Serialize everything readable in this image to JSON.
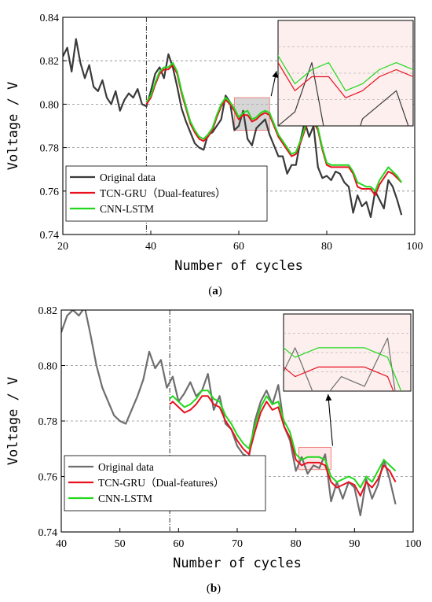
{
  "chart_data": [
    {
      "type": "line",
      "caption_prefix": "(",
      "caption_letter": "a",
      "caption_suffix": ")",
      "xlabel": "Number of cycles",
      "ylabel": "Voltage / V",
      "xlim": [
        20,
        100
      ],
      "ylim": [
        0.74,
        0.84
      ],
      "xticks": [
        20,
        40,
        60,
        80,
        100
      ],
      "xtick_labels": [
        "20",
        "40",
        "60",
        "80",
        "100"
      ],
      "yticks": [
        0.74,
        0.76,
        0.78,
        0.8,
        0.82,
        0.84
      ],
      "ytick_labels": [
        "0.74",
        "0.76",
        "0.78",
        "0.80",
        "0.82",
        "0.84"
      ],
      "grid": "horizontal dashed",
      "prediction_start": 39,
      "legend_position": "bottom-left",
      "zoom_region": {
        "x": [
          59,
          67
        ],
        "y": [
          0.788,
          0.803
        ]
      },
      "series": [
        {
          "name": "Original data",
          "color": "#3a3a3a",
          "x": [
            20,
            21,
            22,
            23,
            24,
            25,
            26,
            27,
            28,
            29,
            30,
            31,
            32,
            33,
            34,
            35,
            36,
            37,
            38,
            39,
            40,
            41,
            42,
            43,
            44,
            45,
            46,
            47,
            48,
            49,
            50,
            51,
            52,
            53,
            54,
            55,
            56,
            57,
            58,
            59,
            60,
            61,
            62,
            63,
            64,
            65,
            66,
            67,
            68,
            69,
            70,
            71,
            72,
            73,
            74,
            75,
            76,
            77,
            78,
            79,
            80,
            81,
            82,
            83,
            84,
            85,
            86,
            87,
            88,
            89,
            90,
            91,
            92,
            93,
            94,
            95,
            96,
            97
          ],
          "y": [
            0.822,
            0.826,
            0.815,
            0.83,
            0.819,
            0.812,
            0.818,
            0.808,
            0.806,
            0.811,
            0.803,
            0.8,
            0.806,
            0.797,
            0.802,
            0.805,
            0.803,
            0.807,
            0.8,
            0.799,
            0.806,
            0.814,
            0.817,
            0.812,
            0.823,
            0.817,
            0.808,
            0.798,
            0.792,
            0.787,
            0.782,
            0.78,
            0.779,
            0.786,
            0.787,
            0.79,
            0.793,
            0.804,
            0.801,
            0.788,
            0.79,
            0.797,
            0.784,
            0.781,
            0.789,
            0.791,
            0.793,
            0.786,
            0.781,
            0.776,
            0.776,
            0.768,
            0.772,
            0.772,
            0.783,
            0.792,
            0.785,
            0.79,
            0.771,
            0.766,
            0.767,
            0.765,
            0.769,
            0.768,
            0.764,
            0.762,
            0.75,
            0.758,
            0.753,
            0.755,
            0.748,
            0.76,
            0.756,
            0.752,
            0.765,
            0.762,
            0.756,
            0.749
          ]
        },
        {
          "name": "TCN-GRU（Dual-features）",
          "color": "#e8101e",
          "x": [
            39,
            40,
            41,
            42,
            43,
            44,
            45,
            46,
            47,
            48,
            49,
            50,
            51,
            52,
            53,
            54,
            55,
            56,
            57,
            58,
            59,
            60,
            61,
            62,
            63,
            64,
            65,
            66,
            67,
            68,
            69,
            70,
            71,
            72,
            73,
            74,
            75,
            76,
            77,
            78,
            79,
            80,
            81,
            82,
            83,
            84,
            85,
            86,
            87,
            88,
            89,
            90,
            91,
            92,
            93,
            94,
            95,
            96,
            97
          ],
          "y": [
            0.8,
            0.803,
            0.809,
            0.814,
            0.816,
            0.816,
            0.818,
            0.814,
            0.805,
            0.798,
            0.791,
            0.787,
            0.784,
            0.783,
            0.785,
            0.788,
            0.794,
            0.799,
            0.802,
            0.8,
            0.797,
            0.793,
            0.795,
            0.795,
            0.792,
            0.793,
            0.795,
            0.796,
            0.795,
            0.79,
            0.785,
            0.782,
            0.779,
            0.776,
            0.777,
            0.782,
            0.788,
            0.793,
            0.792,
            0.788,
            0.779,
            0.772,
            0.771,
            0.771,
            0.771,
            0.771,
            0.771,
            0.768,
            0.762,
            0.761,
            0.761,
            0.761,
            0.758,
            0.763,
            0.766,
            0.769,
            0.768,
            0.766,
            0.764
          ]
        },
        {
          "name": "CNN-LSTM",
          "color": "#22d81c",
          "x": [
            39,
            40,
            41,
            42,
            43,
            44,
            45,
            46,
            47,
            48,
            49,
            50,
            51,
            52,
            53,
            54,
            55,
            56,
            57,
            58,
            59,
            60,
            61,
            62,
            63,
            64,
            65,
            66,
            67,
            68,
            69,
            70,
            71,
            72,
            73,
            74,
            75,
            76,
            77,
            78,
            79,
            80,
            81,
            82,
            83,
            84,
            85,
            86,
            87,
            88,
            89,
            90,
            91,
            92,
            93,
            94,
            95,
            96,
            97
          ],
          "y": [
            0.801,
            0.804,
            0.81,
            0.815,
            0.817,
            0.817,
            0.819,
            0.815,
            0.806,
            0.799,
            0.792,
            0.788,
            0.785,
            0.784,
            0.786,
            0.789,
            0.795,
            0.8,
            0.803,
            0.801,
            0.798,
            0.794,
            0.796,
            0.797,
            0.793,
            0.794,
            0.796,
            0.797,
            0.796,
            0.791,
            0.786,
            0.783,
            0.78,
            0.777,
            0.778,
            0.783,
            0.789,
            0.794,
            0.793,
            0.789,
            0.78,
            0.773,
            0.772,
            0.772,
            0.772,
            0.772,
            0.772,
            0.769,
            0.764,
            0.763,
            0.762,
            0.762,
            0.76,
            0.765,
            0.768,
            0.771,
            0.769,
            0.767,
            0.764
          ]
        }
      ]
    },
    {
      "type": "line",
      "caption_prefix": "(",
      "caption_letter": "b",
      "caption_suffix": ")",
      "xlabel": "Number of cycles",
      "ylabel": "Voltage / V",
      "xlim": [
        40,
        100
      ],
      "ylim": [
        0.74,
        0.82
      ],
      "xticks": [
        40,
        50,
        60,
        70,
        80,
        90,
        100
      ],
      "xtick_labels": [
        "40",
        "50",
        "60",
        "70",
        "80",
        "90",
        "100"
      ],
      "yticks": [
        0.74,
        0.76,
        0.78,
        0.8,
        0.82
      ],
      "ytick_labels": [
        "0.74",
        "0.76",
        "0.78",
        "0.80",
        "0.82"
      ],
      "grid": "horizontal dashed",
      "prediction_start": 58.5,
      "legend_position": "bottom-left",
      "zoom_region": {
        "x": [
          80.5,
          86
        ],
        "y": [
          0.7625,
          0.7705
        ]
      },
      "series": [
        {
          "name": "Original data",
          "color": "#6e6e6e",
          "x": [
            40,
            41,
            42,
            43,
            44,
            45,
            46,
            47,
            48,
            49,
            50,
            51,
            52,
            53,
            54,
            55,
            56,
            57,
            58,
            59,
            60,
            61,
            62,
            63,
            64,
            65,
            66,
            67,
            68,
            69,
            70,
            71,
            72,
            73,
            74,
            75,
            76,
            77,
            78,
            79,
            80,
            81,
            82,
            83,
            84,
            85,
            86,
            87,
            88,
            89,
            90,
            91,
            92,
            93,
            94,
            95,
            96,
            97
          ],
          "y": [
            0.812,
            0.818,
            0.82,
            0.818,
            0.821,
            0.811,
            0.8,
            0.792,
            0.787,
            0.782,
            0.78,
            0.779,
            0.784,
            0.789,
            0.795,
            0.805,
            0.799,
            0.802,
            0.792,
            0.796,
            0.787,
            0.79,
            0.794,
            0.789,
            0.791,
            0.797,
            0.784,
            0.789,
            0.779,
            0.777,
            0.771,
            0.768,
            0.767,
            0.78,
            0.787,
            0.791,
            0.786,
            0.793,
            0.778,
            0.773,
            0.762,
            0.767,
            0.761,
            0.764,
            0.763,
            0.768,
            0.751,
            0.758,
            0.752,
            0.758,
            0.756,
            0.746,
            0.759,
            0.752,
            0.757,
            0.766,
            0.759,
            0.75
          ]
        },
        {
          "name": "TCN-GRU（Dual-features）",
          "color": "#e8101e",
          "x": [
            58.5,
            59,
            60,
            61,
            62,
            63,
            64,
            65,
            66,
            67,
            68,
            69,
            70,
            71,
            72,
            73,
            74,
            75,
            76,
            77,
            78,
            79,
            80,
            81,
            82,
            83,
            84,
            85,
            86,
            87,
            88,
            89,
            90,
            91,
            92,
            93,
            94,
            95,
            96,
            97
          ],
          "y": [
            0.786,
            0.787,
            0.785,
            0.783,
            0.784,
            0.786,
            0.789,
            0.789,
            0.786,
            0.785,
            0.78,
            0.777,
            0.773,
            0.77,
            0.768,
            0.776,
            0.783,
            0.787,
            0.784,
            0.785,
            0.778,
            0.774,
            0.766,
            0.764,
            0.765,
            0.765,
            0.765,
            0.764,
            0.758,
            0.756,
            0.757,
            0.758,
            0.757,
            0.753,
            0.758,
            0.756,
            0.759,
            0.764,
            0.762,
            0.758
          ]
        },
        {
          "name": "CNN-LSTM",
          "color": "#22d81c",
          "x": [
            58.5,
            59,
            60,
            61,
            62,
            63,
            64,
            65,
            66,
            67,
            68,
            69,
            70,
            71,
            72,
            73,
            74,
            75,
            76,
            77,
            78,
            79,
            80,
            81,
            82,
            83,
            84,
            85,
            86,
            87,
            88,
            89,
            90,
            91,
            92,
            93,
            94,
            95,
            96,
            97
          ],
          "y": [
            0.788,
            0.789,
            0.787,
            0.785,
            0.786,
            0.788,
            0.791,
            0.791,
            0.788,
            0.787,
            0.782,
            0.779,
            0.775,
            0.772,
            0.77,
            0.778,
            0.785,
            0.789,
            0.786,
            0.787,
            0.78,
            0.776,
            0.768,
            0.766,
            0.767,
            0.767,
            0.767,
            0.766,
            0.76,
            0.758,
            0.759,
            0.76,
            0.759,
            0.756,
            0.76,
            0.758,
            0.762,
            0.766,
            0.764,
            0.762
          ]
        }
      ]
    }
  ]
}
